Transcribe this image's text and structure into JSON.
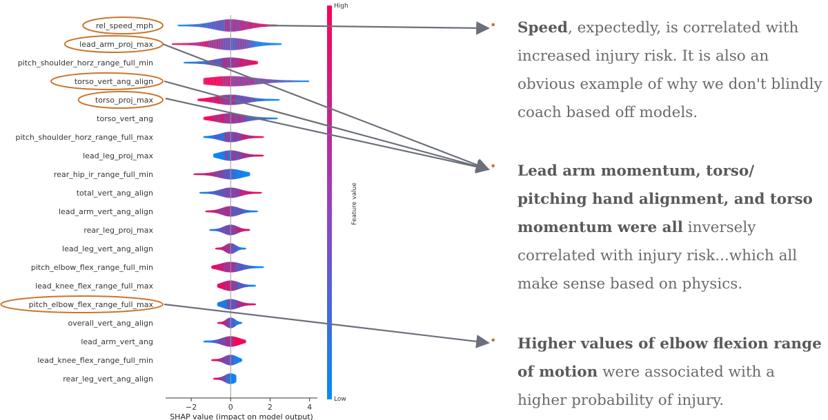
{
  "chart_data": {
    "type": "beeswarm",
    "features": [
      {
        "name": "rel_speed_mph",
        "min": -2.6,
        "max": 2.3,
        "highlighted": true,
        "hi_side": "right"
      },
      {
        "name": "lead_arm_proj_max",
        "min": -2.9,
        "max": 2.5,
        "highlighted": true,
        "hi_side": "left"
      },
      {
        "name": "pitch_shoulder_horz_range_full_min",
        "min": -2.3,
        "max": 1.3,
        "highlighted": false,
        "hi_side": "right"
      },
      {
        "name": "torso_vert_ang_align",
        "min": -1.3,
        "max": 3.9,
        "highlighted": true,
        "hi_side": "left"
      },
      {
        "name": "torso_proj_max",
        "min": -1.6,
        "max": 2.4,
        "highlighted": true,
        "hi_side": "left"
      },
      {
        "name": "torso_vert_ang",
        "min": -1.3,
        "max": 2.3,
        "highlighted": false,
        "hi_side": "left"
      },
      {
        "name": "pitch_shoulder_horz_range_full_max",
        "min": -1.3,
        "max": 1.6,
        "highlighted": false,
        "hi_side": "right"
      },
      {
        "name": "lead_leg_proj_max",
        "min": -0.8,
        "max": 1.6,
        "highlighted": false,
        "hi_side": "right"
      },
      {
        "name": "rear_hip_ir_range_full_min",
        "min": -1.8,
        "max": 0.9,
        "highlighted": false,
        "hi_side": "left"
      },
      {
        "name": "total_vert_ang_align",
        "min": -1.5,
        "max": 1.5,
        "highlighted": false,
        "hi_side": "right"
      },
      {
        "name": "lead_arm_vert_ang_align",
        "min": -1.2,
        "max": 1.3,
        "highlighted": false,
        "hi_side": "left"
      },
      {
        "name": "rear_leg_proj_max",
        "min": -1.0,
        "max": 0.9,
        "highlighted": false,
        "hi_side": "right"
      },
      {
        "name": "lead_leg_vert_ang_align",
        "min": -0.7,
        "max": 0.7,
        "highlighted": false,
        "hi_side": "left"
      },
      {
        "name": "pitch_elbow_flex_range_full_min",
        "min": -0.9,
        "max": 1.6,
        "highlighted": false,
        "hi_side": "left"
      },
      {
        "name": "lead_knee_flex_range_full_max",
        "min": -0.6,
        "max": 1.2,
        "highlighted": false,
        "hi_side": "left"
      },
      {
        "name": "pitch_elbow_flex_range_full_max",
        "min": -0.6,
        "max": 1.2,
        "highlighted": true,
        "hi_side": "right"
      },
      {
        "name": "overall_vert_ang_align",
        "min": -0.6,
        "max": 0.5,
        "highlighted": false,
        "hi_side": "left"
      },
      {
        "name": "lead_arm_vert_ang",
        "min": -1.3,
        "max": 0.7,
        "highlighted": false,
        "hi_side": "right"
      },
      {
        "name": "lead_knee_flex_range_full_min",
        "min": -0.9,
        "max": 0.5,
        "highlighted": false,
        "hi_side": "left"
      },
      {
        "name": "rear_leg_vert_ang_align",
        "min": -0.8,
        "max": 0.2,
        "highlighted": false,
        "hi_side": "left"
      }
    ],
    "xticks": [
      -2,
      0,
      2,
      4
    ],
    "xlim": [
      -3.3,
      4.4
    ],
    "xlabel": "SHAP value (impact on model output)",
    "colorbar": {
      "label": "Feature value",
      "high": "High",
      "low": "Low",
      "high_color": "#ff0052",
      "low_color": "#008bfb"
    },
    "highlight_color": "#c8762e"
  },
  "notes": [
    {
      "parts": [
        {
          "b": true,
          "t": "Speed"
        },
        {
          "b": false,
          "t": ", expectedly, is correlated with increased injury risk. It is also an obvious example of why we don't blindly coach based off models."
        }
      ]
    },
    {
      "parts": [
        {
          "b": true,
          "t": "Lead arm momentum, torso/ pitching hand alignment, and torso momentum were all"
        },
        {
          "b": false,
          "t": " inversely correlated with injury risk...which all make sense based on physics."
        }
      ]
    },
    {
      "parts": [
        {
          "b": true,
          "t": "Higher values of elbow flexion range of motion"
        },
        {
          "b": false,
          "t": " were associated with a higher probability of injury."
        }
      ]
    }
  ]
}
